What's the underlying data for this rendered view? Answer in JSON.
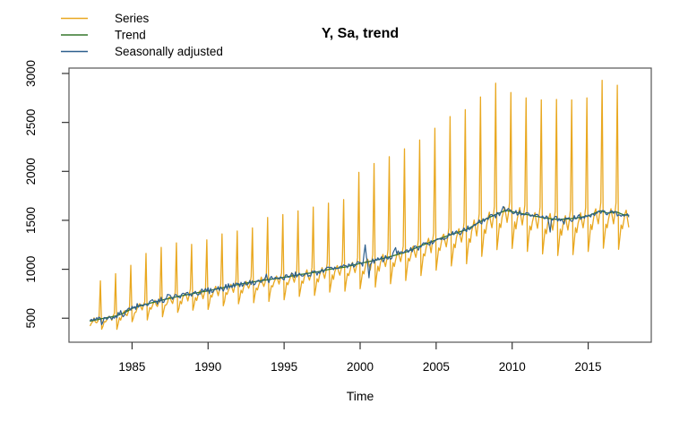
{
  "figure": {
    "title": "Y, Sa, trend",
    "x_axis_label": "Time",
    "y_axis_label": "",
    "legend": {
      "position": "top-left",
      "items": [
        {
          "label": "Series"
        },
        {
          "label": "Trend"
        },
        {
          "label": "Seasonally adjusted"
        }
      ]
    },
    "colors": {
      "background": "#ffffff",
      "plot_border": "#555555",
      "tick_mark": "#333333",
      "text": "#000000"
    }
  },
  "chart_data": {
    "type": "line",
    "title": "Y, Sa, trend",
    "xlabel": "Time",
    "ylabel": "",
    "legend_position": "top-left, no box",
    "grid": false,
    "xlim": [
      1980.85,
      2019.15
    ],
    "ylim": [
      255,
      3055
    ],
    "x_ticks": [
      1985,
      1990,
      1995,
      2000,
      2005,
      2010,
      2015
    ],
    "y_ticks": [
      500,
      1000,
      1500,
      2000,
      2500,
      3000
    ],
    "frequency": "monthly",
    "time_start": 1982.25,
    "time_end": 2017.667,
    "series": [
      {
        "name": "Series",
        "color": "#E9A820",
        "style": "raw monthly series with sharp December peaks: value = trend x seasonal factor, December from december_peaks"
      },
      {
        "name": "Trend",
        "color": "#35762B",
        "style": "smooth trend through trend_points"
      },
      {
        "name": "Seasonally adjusted",
        "color": "#2D5F8D",
        "style": "trend plus irregular component (noise_amplitudes, sa_events)"
      }
    ],
    "trend_points": [
      [
        1982.25,
        470
      ],
      [
        1983,
        495
      ],
      [
        1984,
        525
      ],
      [
        1984.5,
        556
      ],
      [
        1985,
        600
      ],
      [
        1985.5,
        626
      ],
      [
        1986,
        646
      ],
      [
        1987,
        686
      ],
      [
        1988,
        722
      ],
      [
        1989,
        752
      ],
      [
        1990,
        780
      ],
      [
        1991,
        812
      ],
      [
        1992,
        845
      ],
      [
        1993,
        872
      ],
      [
        1994,
        895
      ],
      [
        1995,
        918
      ],
      [
        1996,
        945
      ],
      [
        1997,
        968
      ],
      [
        1998,
        1000
      ],
      [
        1999,
        1022
      ],
      [
        2000,
        1060
      ],
      [
        2001,
        1092
      ],
      [
        2002,
        1130
      ],
      [
        2003,
        1175
      ],
      [
        2004,
        1240
      ],
      [
        2005,
        1300
      ],
      [
        2006,
        1355
      ],
      [
        2007,
        1405
      ],
      [
        2008,
        1495
      ],
      [
        2009,
        1565
      ],
      [
        2009.6,
        1602
      ],
      [
        2010,
        1588
      ],
      [
        2011,
        1558
      ],
      [
        2012,
        1528
      ],
      [
        2013,
        1508
      ],
      [
        2014,
        1518
      ],
      [
        2015,
        1545
      ],
      [
        2015.8,
        1598
      ],
      [
        2016.3,
        1572
      ],
      [
        2016.8,
        1590
      ],
      [
        2017.3,
        1558
      ],
      [
        2017.667,
        1552
      ]
    ],
    "seasonal_factors": [
      0.76,
      0.84,
      0.93,
      0.9,
      0.96,
      1.0,
      1.03,
      0.97,
      0.92,
      0.985,
      1.06,
      1.82
    ],
    "december_peaks": {
      "1982": 882,
      "1983": 955,
      "1984": 1040,
      "1985": 1162,
      "1986": 1223,
      "1987": 1269,
      "1988": 1254,
      "1989": 1300,
      "1990": 1361,
      "1991": 1391,
      "1992": 1422,
      "1993": 1529,
      "1994": 1559,
      "1995": 1596,
      "1996": 1635,
      "1997": 1675,
      "1998": 1712,
      "1999": 1990,
      "2000": 2080,
      "2001": 2150,
      "2002": 2230,
      "2003": 2320,
      "2004": 2440,
      "2005": 2560,
      "2006": 2630,
      "2007": 2760,
      "2008": 2900,
      "2009": 2805,
      "2010": 2750,
      "2011": 2730,
      "2012": 2735,
      "2013": 2730,
      "2014": 2750,
      "2015": 2930,
      "2016": 2880
    },
    "noise_amplitudes": {
      "series": 12,
      "sa_low": 26,
      "sa_high": 12
    },
    "sa_events": [
      [
        1983.05,
        -85
      ],
      [
        1984.8,
        60
      ],
      [
        1987.4,
        55
      ],
      [
        1993.8,
        50
      ],
      [
        1996.3,
        -55
      ],
      [
        2000.33,
        215
      ],
      [
        2000.58,
        -160
      ],
      [
        2002.3,
        110
      ],
      [
        2004.3,
        55
      ],
      [
        2009.4,
        80
      ],
      [
        2012.5,
        -115
      ],
      [
        2013.4,
        -85
      ],
      [
        2016.9,
        -55
      ]
    ]
  },
  "layout_values": {
    "x_tick_label_y": 414,
    "y_tick_label_x": 39
  }
}
